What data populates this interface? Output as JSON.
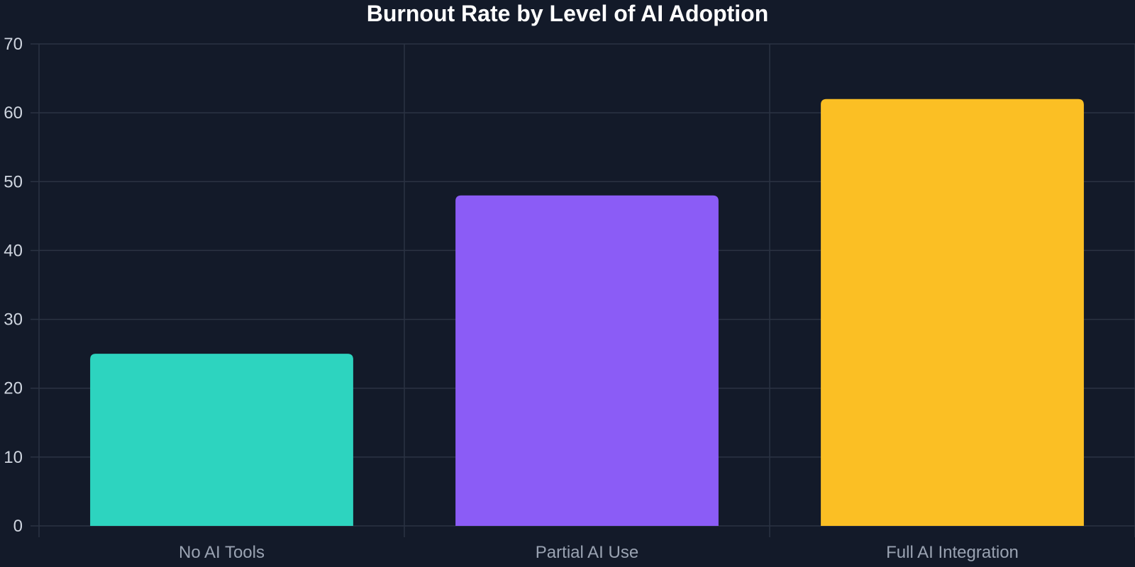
{
  "chart_data": {
    "type": "bar",
    "title": "Burnout Rate by Level of AI Adoption",
    "xlabel": "",
    "ylabel": "",
    "categories": [
      "No AI Tools",
      "Partial AI Use",
      "Full AI Integration"
    ],
    "values": [
      25,
      48,
      62
    ],
    "colors": [
      "#2dd4bf",
      "#8b5cf6",
      "#fbbf24"
    ],
    "ylim": [
      0,
      70
    ],
    "yticks": [
      0,
      10,
      20,
      30,
      40,
      50,
      60,
      70
    ],
    "grid": true,
    "legend": "none"
  },
  "theme": {
    "background": "#131a29",
    "grid_color": "#2b3343",
    "title_color": "#ffffff"
  }
}
